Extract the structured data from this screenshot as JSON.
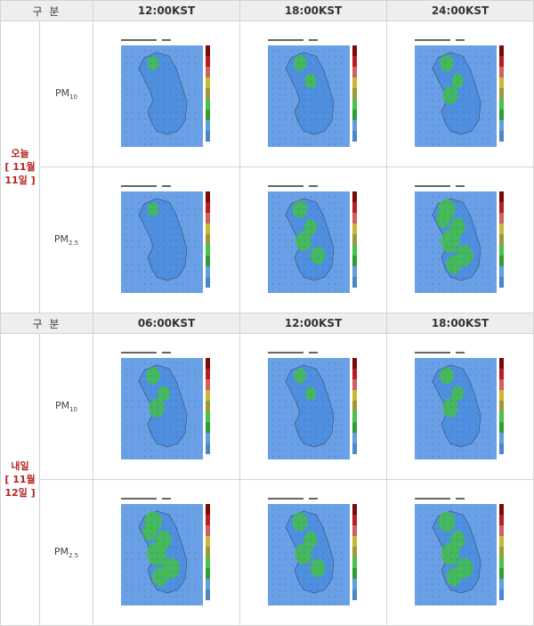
{
  "header1": {
    "col0": "구 분",
    "times": [
      "12:00KST",
      "18:00KST",
      "24:00KST"
    ]
  },
  "header2": {
    "col0": "구 분",
    "times": [
      "06:00KST",
      "12:00KST",
      "18:00KST"
    ]
  },
  "today": {
    "line1": "오늘",
    "line2": "[ 11월",
    "line3": "11일 ]"
  },
  "tomorrow": {
    "line1": "내일",
    "line2": "[ 11월",
    "line3": "12일 ]"
  },
  "rows": {
    "pm10_label": "PM",
    "pm10_sub": "10",
    "pm25_label": "PM",
    "pm25_sub": "2.5"
  },
  "colors": {
    "sea": "#6aa0e6",
    "land": "#4f8fe0",
    "high": "#43c04a",
    "border": "#3a4a6a",
    "day_text": "#b3261e"
  }
}
